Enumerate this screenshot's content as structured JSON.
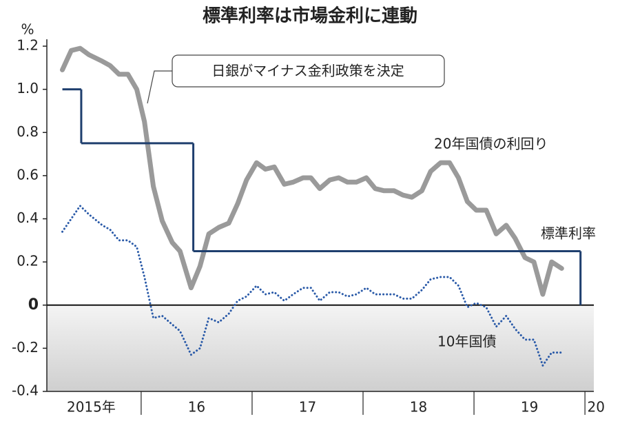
{
  "chart_data": {
    "type": "line",
    "title": "標準利率は市場金利に連動",
    "y_label": "%",
    "annotation": "日銀がマイナス金利政策を決定",
    "xlim": [
      2015.15,
      2020.08
    ],
    "ylim": [
      -0.4,
      1.2
    ],
    "yticks": [
      -0.4,
      -0.2,
      0,
      0.2,
      0.4,
      0.6,
      0.8,
      {
        "value": 1.0,
        "label": "1.0"
      },
      1.2
    ],
    "xticks": [
      {
        "value": 2015.55,
        "label": "2015年"
      },
      {
        "value": 2016.5,
        "label": "16"
      },
      {
        "value": 2017.5,
        "label": "17"
      },
      {
        "value": 2018.5,
        "label": "18"
      },
      {
        "value": 2019.5,
        "label": "19"
      },
      {
        "value": 2020.1,
        "label": "20"
      }
    ],
    "year_dividers": [
      2016,
      2017,
      2018,
      2019,
      2020
    ],
    "x": [
      2015.29,
      2015.37,
      2015.45,
      2015.53,
      2015.65,
      2015.72,
      2015.8,
      2015.88,
      2015.96,
      2016.03,
      2016.11,
      2016.19,
      2016.28,
      2016.35,
      2016.45,
      2016.53,
      2016.61,
      2016.7,
      2016.79,
      2016.87,
      2016.95,
      2017.04,
      2017.12,
      2017.2,
      2017.29,
      2017.37,
      2017.46,
      2017.53,
      2017.61,
      2017.7,
      2017.78,
      2017.86,
      2017.94,
      2018.03,
      2018.11,
      2018.19,
      2018.28,
      2018.36,
      2018.44,
      2018.53,
      2018.61,
      2018.7,
      2018.78,
      2018.86,
      2018.94,
      2019.02,
      2019.11,
      2019.2,
      2019.29,
      2019.37,
      2019.46,
      2019.54,
      2019.62,
      2019.7,
      2019.79
    ],
    "series": [
      {
        "name": "20年国債の利回り",
        "color": "#9a9a9a",
        "style": "solid",
        "values": [
          1.09,
          1.18,
          1.19,
          1.16,
          1.13,
          1.11,
          1.07,
          1.07,
          1.0,
          0.85,
          0.55,
          0.39,
          0.29,
          0.25,
          0.08,
          0.18,
          0.33,
          0.36,
          0.38,
          0.47,
          0.58,
          0.66,
          0.63,
          0.64,
          0.56,
          0.57,
          0.59,
          0.59,
          0.54,
          0.58,
          0.59,
          0.57,
          0.57,
          0.59,
          0.54,
          0.53,
          0.53,
          0.51,
          0.5,
          0.53,
          0.62,
          0.66,
          0.66,
          0.59,
          0.48,
          0.44,
          0.44,
          0.33,
          0.37,
          0.31,
          0.22,
          0.2,
          0.05,
          0.2,
          0.17
        ]
      },
      {
        "name": "10年国債",
        "color": "#2a5aa8",
        "style": "dotted",
        "values": [
          0.34,
          0.4,
          0.46,
          0.42,
          0.37,
          0.35,
          0.3,
          0.3,
          0.27,
          0.13,
          -0.06,
          -0.05,
          -0.09,
          -0.12,
          -0.23,
          -0.2,
          -0.06,
          -0.08,
          -0.04,
          0.02,
          0.04,
          0.09,
          0.05,
          0.06,
          0.02,
          0.05,
          0.08,
          0.08,
          0.02,
          0.06,
          0.06,
          0.04,
          0.05,
          0.08,
          0.05,
          0.05,
          0.05,
          0.03,
          0.03,
          0.07,
          0.12,
          0.13,
          0.13,
          0.09,
          -0.01,
          0.01,
          -0.01,
          -0.1,
          -0.05,
          -0.11,
          -0.16,
          -0.16,
          -0.28,
          -0.22,
          -0.22
        ]
      },
      {
        "name": "標準利率",
        "color": "#1f3f6e",
        "style": "step",
        "x": [
          2015.29,
          2015.46,
          2016.47,
          2019.96
        ],
        "values": [
          1.0,
          0.75,
          0.25,
          0
        ]
      }
    ]
  }
}
